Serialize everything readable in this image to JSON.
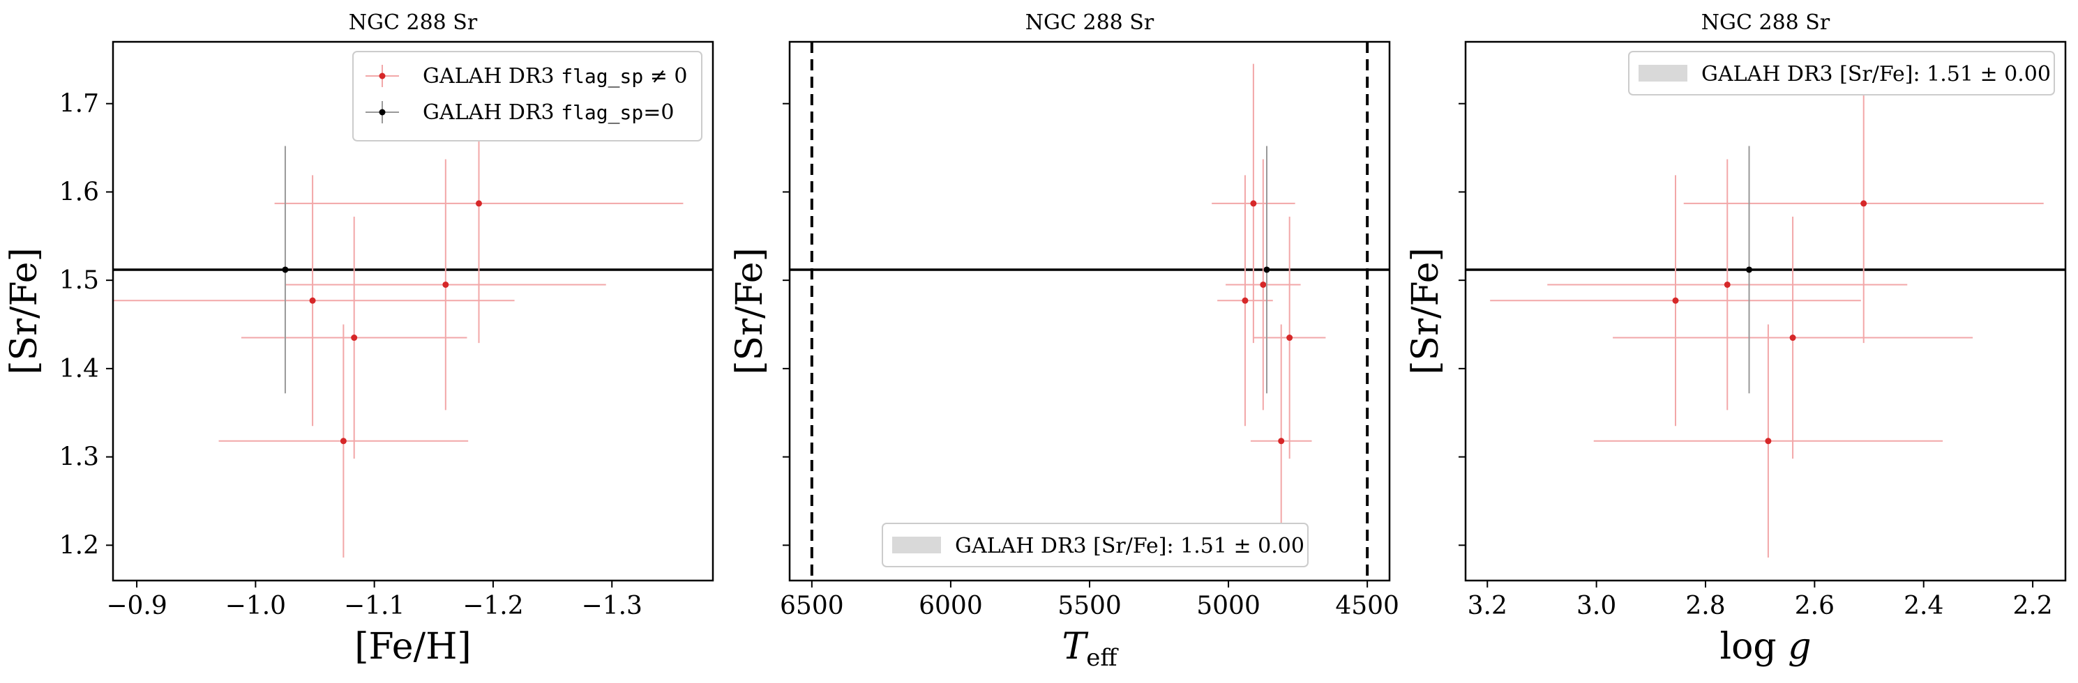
{
  "colors": {
    "flag_nonzero": "#d62728",
    "flag_nonzero_err": "#f2a7a8",
    "flag_zero": "#000000",
    "flag_zero_err": "#999999",
    "reference_line": "#000000",
    "band": "#d9d9d9"
  },
  "chart_data": [
    {
      "type": "scatter",
      "title": "NGC 288 Sr",
      "xlabel": "[Fe/H]",
      "ylabel": "[Sr/Fe]",
      "xlim": [
        -0.88,
        -1.385
      ],
      "ylim": [
        1.16,
        1.77
      ],
      "x_inverted": true,
      "xticks": [
        -0.9,
        -1.0,
        -1.1,
        -1.2,
        -1.3
      ],
      "xtick_labels": [
        "−0.9",
        "−1.0",
        "−1.1",
        "−1.2",
        "−1.3"
      ],
      "yticks": [
        1.2,
        1.3,
        1.4,
        1.5,
        1.6,
        1.7
      ],
      "ytick_labels": [
        "1.2",
        "1.3",
        "1.4",
        "1.5",
        "1.6",
        "1.7"
      ],
      "show_ytick_labels": true,
      "reference_line_y": 1.512,
      "legend": {
        "placement": "top-right",
        "entries": [
          {
            "series": "flag_nonzero",
            "text": "GALAH DR3 ",
            "code": "flag_sp",
            "suffix": " ≠ 0"
          },
          {
            "series": "flag_zero",
            "text": "GALAH DR3 ",
            "code": "flag_sp",
            "suffix": "=0"
          }
        ]
      },
      "series": [
        {
          "key": "flag_nonzero",
          "points": [
            {
              "x": -1.048,
              "y": 1.477,
              "xerr": 0.17,
              "yerr": 0.142
            },
            {
              "x": -1.074,
              "y": 1.318,
              "xerr": 0.105,
              "yerr": 0.132
            },
            {
              "x": -1.083,
              "y": 1.435,
              "xerr": 0.095,
              "yerr": 0.137
            },
            {
              "x": -1.16,
              "y": 1.495,
              "xerr": 0.135,
              "yerr": 0.142
            },
            {
              "x": -1.188,
              "y": 1.587,
              "xerr": 0.172,
              "yerr": 0.158
            }
          ]
        },
        {
          "key": "flag_zero",
          "points": [
            {
              "x": -1.025,
              "y": 1.512,
              "xerr": 0.0,
              "yerr": 0.14
            }
          ]
        }
      ]
    },
    {
      "type": "scatter",
      "title": "NGC 288 Sr",
      "xlabel": "T_eff",
      "ylabel": "[Sr/Fe]",
      "xlim": [
        6580,
        4420
      ],
      "ylim": [
        1.16,
        1.77
      ],
      "x_inverted": true,
      "xticks": [
        6500,
        6000,
        5500,
        5000,
        4500
      ],
      "xtick_labels": [
        "6500",
        "6000",
        "5500",
        "5000",
        "4500"
      ],
      "yticks": [
        1.2,
        1.3,
        1.4,
        1.5,
        1.6,
        1.7
      ],
      "show_ytick_labels": false,
      "reference_line_y": 1.512,
      "vertical_dashed_lines_x": [
        6500,
        4500
      ],
      "legend": {
        "placement": "lower-center",
        "entries": [
          {
            "series": "band",
            "text": "GALAH DR3 [Sr/Fe]: 1.51 ± 0.00"
          }
        ]
      },
      "series": [
        {
          "key": "flag_nonzero",
          "points": [
            {
              "x": 4940,
              "y": 1.477,
              "xerr": 100,
              "yerr": 0.142
            },
            {
              "x": 4810,
              "y": 1.318,
              "xerr": 110,
              "yerr": 0.132
            },
            {
              "x": 4780,
              "y": 1.435,
              "xerr": 130,
              "yerr": 0.137
            },
            {
              "x": 4875,
              "y": 1.495,
              "xerr": 135,
              "yerr": 0.142
            },
            {
              "x": 4910,
              "y": 1.587,
              "xerr": 150,
              "yerr": 0.158
            }
          ]
        },
        {
          "key": "flag_zero",
          "points": [
            {
              "x": 4862,
              "y": 1.512,
              "xerr": 0,
              "yerr": 0.14
            }
          ]
        }
      ]
    },
    {
      "type": "scatter",
      "title": "NGC 288 Sr",
      "xlabel": "log g",
      "ylabel": "[Sr/Fe]",
      "xlim": [
        3.24,
        2.14
      ],
      "ylim": [
        1.16,
        1.77
      ],
      "x_inverted": true,
      "xticks": [
        3.2,
        3.0,
        2.8,
        2.6,
        2.4,
        2.2
      ],
      "xtick_labels": [
        "3.2",
        "3.0",
        "2.8",
        "2.6",
        "2.4",
        "2.2"
      ],
      "yticks": [
        1.2,
        1.3,
        1.4,
        1.5,
        1.6,
        1.7
      ],
      "show_ytick_labels": false,
      "reference_line_y": 1.512,
      "legend": {
        "placement": "top-right",
        "entries": [
          {
            "series": "band",
            "text": "GALAH DR3 [Sr/Fe]: 1.51 ± 0.00"
          }
        ]
      },
      "series": [
        {
          "key": "flag_nonzero",
          "points": [
            {
              "x": 2.855,
              "y": 1.477,
              "xerr": 0.34,
              "yerr": 0.142
            },
            {
              "x": 2.685,
              "y": 1.318,
              "xerr": 0.32,
              "yerr": 0.132
            },
            {
              "x": 2.64,
              "y": 1.435,
              "xerr": 0.33,
              "yerr": 0.137
            },
            {
              "x": 2.76,
              "y": 1.495,
              "xerr": 0.33,
              "yerr": 0.142
            },
            {
              "x": 2.51,
              "y": 1.587,
              "xerr": 0.33,
              "yerr": 0.158
            }
          ]
        },
        {
          "key": "flag_zero",
          "points": [
            {
              "x": 2.72,
              "y": 1.512,
              "xerr": 0,
              "yerr": 0.14
            }
          ]
        }
      ]
    }
  ]
}
